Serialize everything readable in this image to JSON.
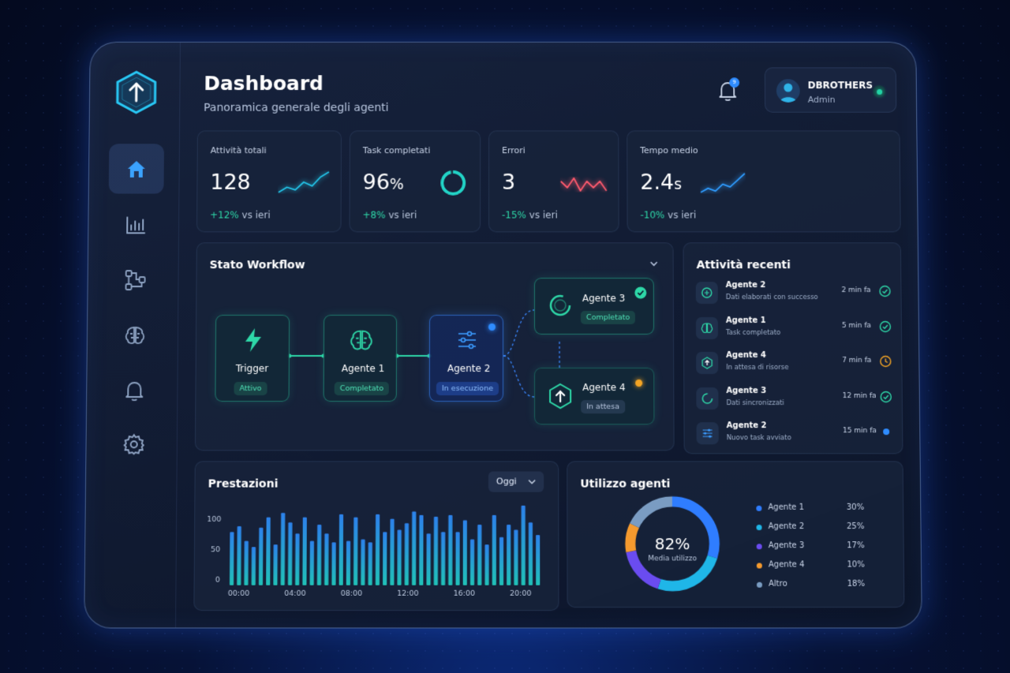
{
  "header": {
    "title": "Dashboard",
    "subtitle": "Panoramica generale degli agenti",
    "notification_count": "9"
  },
  "user": {
    "name": "DBROTHERS",
    "role": "Admin"
  },
  "stats": [
    {
      "label": "Attività totali",
      "value": "128",
      "unit": "",
      "delta": "+12%",
      "delta_text": "vs ieri",
      "trend": [
        10,
        14,
        12,
        18,
        15,
        22,
        26
      ]
    },
    {
      "label": "Task completati",
      "value": "96",
      "unit": "%",
      "delta": "+8%",
      "delta_text": "vs ieri",
      "ring": 96
    },
    {
      "label": "Errori",
      "value": "3",
      "unit": "",
      "delta": "-15%",
      "delta_text": "vs ieri",
      "trend": [
        14,
        12,
        15,
        11,
        14,
        12,
        14,
        11
      ]
    },
    {
      "label": "Tempo medio",
      "value": "2.4",
      "unit": "s",
      "delta": "-10%",
      "delta_text": "vs ieri",
      "trend": [
        10,
        13,
        11,
        16,
        14,
        19,
        24
      ]
    }
  ],
  "workflow": {
    "title": "Stato Workflow",
    "nodes": [
      {
        "name": "Trigger",
        "status": "Attivo"
      },
      {
        "name": "Agente 1",
        "status": "Completato"
      },
      {
        "name": "Agente 2",
        "status": "In esecuzione"
      },
      {
        "name": "Agente 3",
        "status": "Completato"
      },
      {
        "name": "Agente 4",
        "status": "In attesa"
      }
    ]
  },
  "activity": {
    "title": "Attività recenti",
    "items": [
      {
        "agent": "Agente 2",
        "desc": "Dati elaborati con successo",
        "time": "2 min fa",
        "status": "done",
        "icon": "chip-icon"
      },
      {
        "agent": "Agente 1",
        "desc": "Task completato",
        "time": "5 min fa",
        "status": "done",
        "icon": "brain-icon"
      },
      {
        "agent": "Agente 4",
        "desc": "In attesa di risorse",
        "time": "7 min fa",
        "status": "waiting",
        "icon": "upload-hex-icon"
      },
      {
        "agent": "Agente 3",
        "desc": "Dati sincronizzati",
        "time": "12 min fa",
        "status": "done",
        "icon": "ring-icon"
      },
      {
        "agent": "Agente 2",
        "desc": "Nuovo task avviato",
        "time": "15 min fa",
        "status": "running",
        "icon": "sliders-icon"
      }
    ]
  },
  "performance": {
    "title": "Prestazioni",
    "period": "Oggi",
    "chart_data": {
      "type": "bar",
      "ylim": [
        0,
        100
      ],
      "y_ticks": [
        "100",
        "50",
        "0"
      ],
      "x_ticks": [
        "00:00",
        "04:00",
        "08:00",
        "12:00",
        "16:00",
        "20:00"
      ],
      "values": [
        72,
        80,
        60,
        52,
        78,
        92,
        55,
        98,
        85,
        70,
        92,
        60,
        82,
        70,
        58,
        96,
        60,
        92,
        62,
        58,
        96,
        72,
        90,
        75,
        84,
        100,
        95,
        70,
        93,
        72,
        95,
        72,
        88,
        62,
        82,
        55,
        95,
        65,
        82,
        75,
        108,
        85,
        68
      ]
    }
  },
  "usage": {
    "title": "Utilizzo agenti",
    "center_value": "82%",
    "center_label": "Media utilizzo",
    "chart_data": {
      "type": "pie",
      "labels": [
        "Agente 1",
        "Agente 2",
        "Agente 3",
        "Agente 4",
        "Altro"
      ],
      "values": [
        30,
        25,
        17,
        10,
        18
      ],
      "display": [
        "30%",
        "25%",
        "17%",
        "10%",
        "18%"
      ],
      "colors": [
        "#2f7dff",
        "#1fb6e8",
        "#6a4cf0",
        "#f59a2e",
        "#7a9cc2"
      ]
    }
  },
  "colors": {
    "accent": "#2f8cff",
    "teal": "#2ed8a8",
    "red": "#ff5a6e",
    "orange": "#f5a524"
  }
}
